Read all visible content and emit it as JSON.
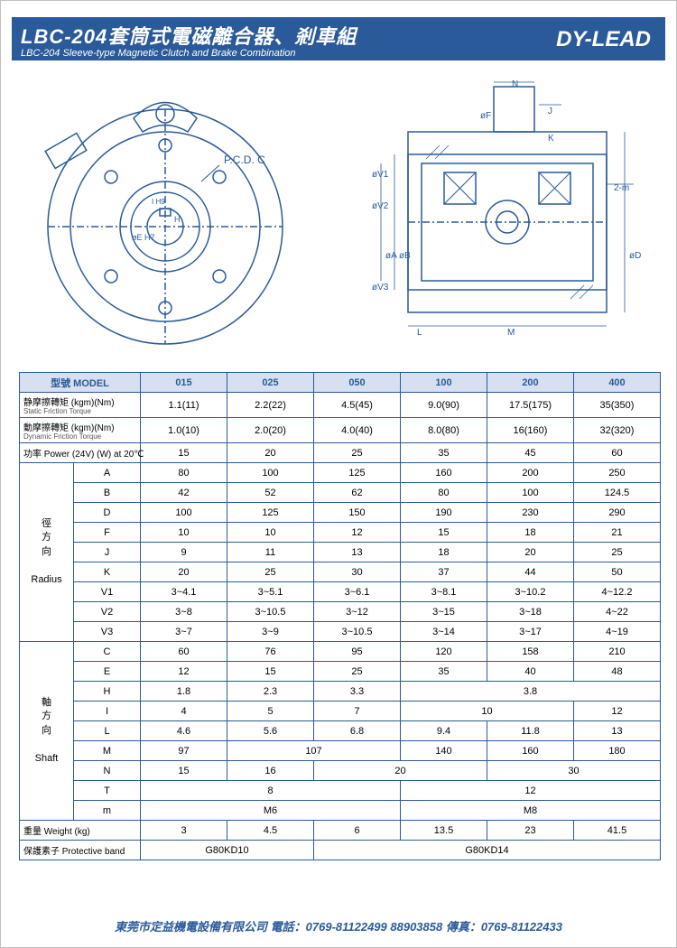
{
  "header": {
    "title_cn": "LBC-204套筒式電磁離合器、剎車組",
    "title_en": "LBC-204 Sleeve-type Magnetic Clutch and Brake Combination",
    "brand": "DY-LEAD"
  },
  "colors": {
    "primary": "#2a5a9a",
    "header_bg": "#d6e0f0",
    "border": "#2a5a9a"
  },
  "diagram": {
    "left_label": "P.C.D. C",
    "left_dims": [
      "øE H7",
      "H",
      "I H9"
    ],
    "right_dims": [
      "øV1",
      "øV2",
      "øA",
      "øB",
      "øV3",
      "øF",
      "J",
      "K",
      "N",
      "L",
      "M",
      "2-m",
      "øD"
    ],
    "stroke": "#2a5a9a"
  },
  "table": {
    "model_header": "型號 MODEL",
    "models": [
      "015",
      "025",
      "050",
      "100",
      "200",
      "400"
    ],
    "static_label": "静摩擦轉矩 (kgm)(Nm)",
    "static_sub": "Static Friction Torque",
    "static": [
      "1.1(11)",
      "2.2(22)",
      "4.5(45)",
      "9.0(90)",
      "17.5(175)",
      "35(350)"
    ],
    "dynamic_label": "動摩擦轉矩 (kgm)(Nm)",
    "dynamic_sub": "Dynamic Friction Torque",
    "dynamic": [
      "1.0(10)",
      "2.0(20)",
      "4.0(40)",
      "8.0(80)",
      "16(160)",
      "32(320)"
    ],
    "power_label": "功率 Power (24V) (W) at 20℃",
    "power": [
      "15",
      "20",
      "25",
      "35",
      "45",
      "60"
    ],
    "radius_group_cn": "徑方向",
    "radius_group_en": "Radius",
    "radius_rows": [
      {
        "k": "A",
        "v": [
          "80",
          "100",
          "125",
          "160",
          "200",
          "250"
        ]
      },
      {
        "k": "B",
        "v": [
          "42",
          "52",
          "62",
          "80",
          "100",
          "124.5"
        ]
      },
      {
        "k": "D",
        "v": [
          "100",
          "125",
          "150",
          "190",
          "230",
          "290"
        ]
      },
      {
        "k": "F",
        "v": [
          "10",
          "10",
          "12",
          "15",
          "18",
          "21"
        ]
      },
      {
        "k": "J",
        "v": [
          "9",
          "11",
          "13",
          "18",
          "20",
          "25"
        ]
      },
      {
        "k": "K",
        "v": [
          "20",
          "25",
          "30",
          "37",
          "44",
          "50"
        ]
      },
      {
        "k": "V1",
        "v": [
          "3~4.1",
          "3~5.1",
          "3~6.1",
          "3~8.1",
          "3~10.2",
          "4~12.2"
        ]
      },
      {
        "k": "V2",
        "v": [
          "3~8",
          "3~10.5",
          "3~12",
          "3~15",
          "3~18",
          "4~22"
        ]
      },
      {
        "k": "V3",
        "v": [
          "3~7",
          "3~9",
          "3~10.5",
          "3~14",
          "3~17",
          "4~19"
        ]
      }
    ],
    "shaft_group_cn": "軸方向",
    "shaft_group_en": "Shaft",
    "shaft_rows": [
      {
        "k": "C",
        "v": [
          "60",
          "76",
          "95",
          "120",
          "158",
          "210"
        ]
      },
      {
        "k": "E",
        "v": [
          "12",
          "15",
          "25",
          "35",
          "40",
          "48"
        ]
      }
    ],
    "row_H": {
      "k": "H",
      "v": [
        "1.8",
        "2.3",
        "3.3",
        "3.8"
      ]
    },
    "row_I": {
      "k": "I",
      "v": [
        "4",
        "5",
        "7",
        "10",
        "12"
      ]
    },
    "row_L": {
      "k": "L",
      "v": [
        "4.6",
        "5.6",
        "6.8",
        "9.4",
        "11.8",
        "13"
      ]
    },
    "row_M": {
      "k": "M",
      "v": [
        "97",
        "107",
        "140",
        "160",
        "180"
      ]
    },
    "row_N": {
      "k": "N",
      "v": [
        "15",
        "16",
        "20",
        "30"
      ]
    },
    "row_T": {
      "k": "T",
      "v": [
        "8",
        "12"
      ]
    },
    "row_m": {
      "k": "m",
      "v": [
        "M6",
        "M8"
      ]
    },
    "weight_label": "重量 Weight (kg)",
    "weight": [
      "3",
      "4.5",
      "6",
      "13.5",
      "23",
      "41.5"
    ],
    "protective_label": "保護素子 Protective band",
    "protective": [
      "G80KD10",
      "G80KD14"
    ]
  },
  "footer": {
    "text": "東莞市定益機電設備有限公司  電話：0769-81122499 88903858  傳真：0769-81122433"
  }
}
